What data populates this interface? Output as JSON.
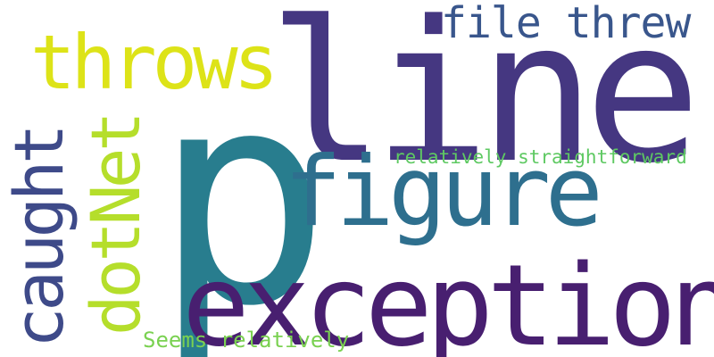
{
  "words": [
    {
      "text": "line",
      "color": "#453781"
    },
    {
      "text": "p",
      "color": "#287d8e"
    },
    {
      "text": "exception",
      "color": "#481f70"
    },
    {
      "text": "figure",
      "color": "#2e6f8e"
    },
    {
      "text": "throws",
      "color": "#dde318"
    },
    {
      "text": "file threw",
      "color": "#39568c"
    },
    {
      "text": "relatively straightforward",
      "color": "#5ec962"
    },
    {
      "text": "Seems relatively",
      "color": "#7ad151"
    },
    {
      "text": "caught",
      "color": "#3e4a89"
    },
    {
      "text": "dotNet",
      "color": "#b5de2b"
    }
  ]
}
